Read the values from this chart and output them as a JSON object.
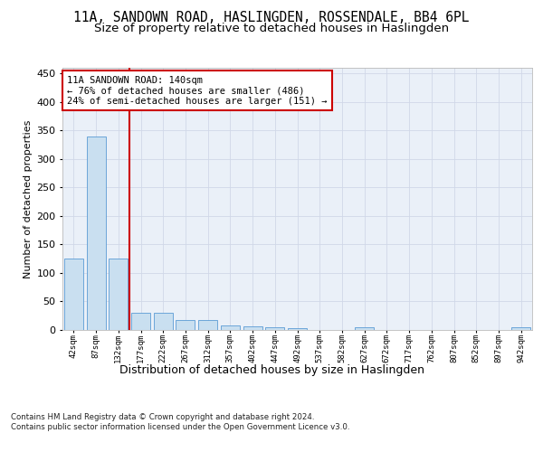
{
  "title": "11A, SANDOWN ROAD, HASLINGDEN, ROSSENDALE, BB4 6PL",
  "subtitle": "Size of property relative to detached houses in Haslingden",
  "xlabel": "Distribution of detached houses by size in Haslingden",
  "ylabel": "Number of detached properties",
  "bin_labels": [
    "42sqm",
    "87sqm",
    "132sqm",
    "177sqm",
    "222sqm",
    "267sqm",
    "312sqm",
    "357sqm",
    "402sqm",
    "447sqm",
    "492sqm",
    "537sqm",
    "582sqm",
    "627sqm",
    "672sqm",
    "717sqm",
    "762sqm",
    "807sqm",
    "852sqm",
    "897sqm",
    "942sqm"
  ],
  "bar_values": [
    125,
    340,
    125,
    30,
    30,
    17,
    17,
    8,
    7,
    5,
    3,
    0,
    0,
    5,
    0,
    0,
    0,
    0,
    0,
    0,
    5
  ],
  "bar_color": "#c9dff0",
  "bar_edge_color": "#5b9bd5",
  "grid_color": "#d0d8e8",
  "bg_color": "#eaf0f8",
  "annotation_text": "11A SANDOWN ROAD: 140sqm\n← 76% of detached houses are smaller (486)\n24% of semi-detached houses are larger (151) →",
  "red_line_x": 2.5,
  "annotation_box_color": "#ffffff",
  "annotation_box_edge": "#cc0000",
  "title_fontsize": 10.5,
  "subtitle_fontsize": 9.5,
  "xlabel_fontsize": 9,
  "ylabel_fontsize": 8,
  "footer_text": "Contains HM Land Registry data © Crown copyright and database right 2024.\nContains public sector information licensed under the Open Government Licence v3.0.",
  "ylim": [
    0,
    460
  ],
  "yticks": [
    0,
    50,
    100,
    150,
    200,
    250,
    300,
    350,
    400,
    450
  ]
}
